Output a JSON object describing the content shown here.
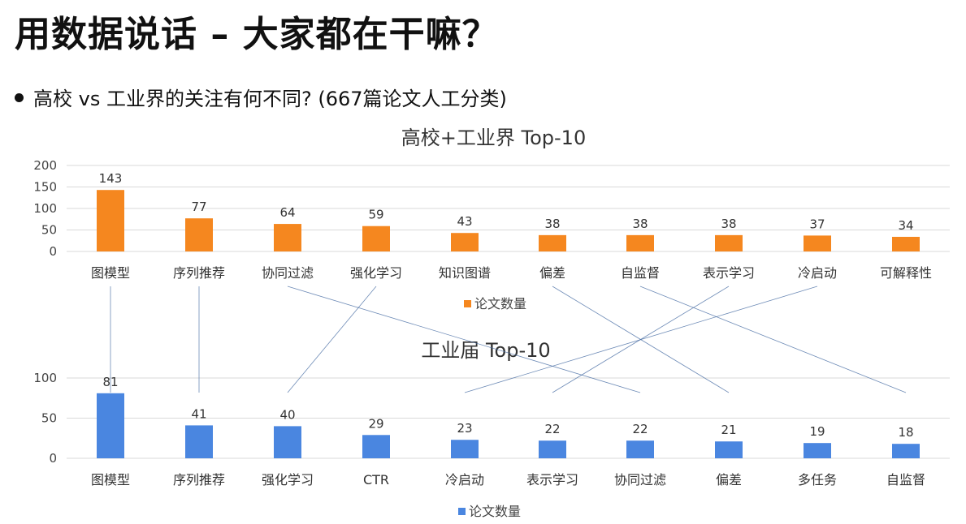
{
  "page": {
    "title": "用数据说话 – 大家都在干嘛？",
    "bullet": "高校 vs 工业界的关注有何不同? (667篇论文人工分类)"
  },
  "colors": {
    "top": "#f5871f",
    "bottom": "#4a86e0",
    "grid": "#d9d9d9",
    "connector": "#4a6fa5"
  },
  "chart_data": [
    {
      "type": "bar",
      "title": "高校+工业界 Top-10",
      "categories": [
        "图模型",
        "序列推荐",
        "协同过滤",
        "强化学习",
        "知识图谱",
        "偏差",
        "自监督",
        "表示学习",
        "冷启动",
        "可解释性"
      ],
      "series": [
        {
          "name": "论文数量",
          "values": [
            143,
            77,
            64,
            59,
            43,
            38,
            38,
            38,
            37,
            34
          ]
        }
      ],
      "yticks": [
        0,
        50,
        100,
        150,
        200
      ],
      "ylim": [
        0,
        200
      ],
      "legend": "bottom-center",
      "grid": true
    },
    {
      "type": "bar",
      "title": "工业届 Top-10",
      "categories": [
        "图模型",
        "序列推荐",
        "强化学习",
        "CTR",
        "冷启动",
        "表示学习",
        "协同过滤",
        "偏差",
        "多任务",
        "自监督"
      ],
      "series": [
        {
          "name": "论文数量",
          "values": [
            81,
            41,
            40,
            29,
            23,
            22,
            22,
            21,
            19,
            18
          ]
        }
      ],
      "yticks": [
        0,
        50,
        100
      ],
      "ylim": [
        0,
        100
      ],
      "legend": "bottom-center",
      "grid": true
    }
  ]
}
